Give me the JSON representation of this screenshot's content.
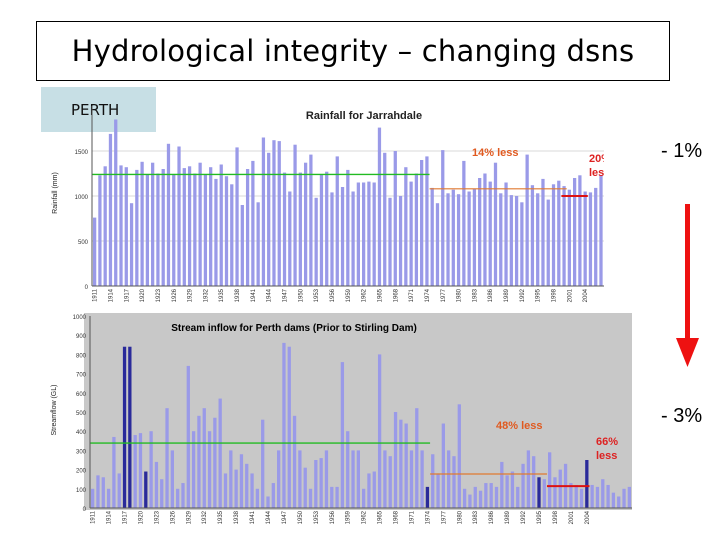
{
  "slide": {
    "title": "Hydrological integrity – changing dsns",
    "region_label": "PERTH",
    "rainfall_change": "- 1%",
    "streamflow_change": "- 3%",
    "colors": {
      "arrow": "#ee1111",
      "bars": "#9a9ae8",
      "dark_bars": "#2a2a9a",
      "green_line": "#22bb22",
      "orange_line": "#e07a30",
      "red_line": "#dd1111",
      "annot_orange": "#e05a20",
      "annot_red": "#dd2222",
      "panel_bg": "#c8c8c8"
    }
  },
  "chart_data": [
    {
      "type": "bar",
      "title": "Rainfall for Jarrahdale",
      "ylabel": "Rainfall (mm)",
      "ylim": [
        0,
        2000
      ],
      "yticks": [
        "0",
        "500",
        "1000",
        "1500"
      ],
      "x_start": 1911,
      "x_tick_labels": [
        "1911",
        "1914",
        "1917",
        "1920",
        "1923",
        "1926",
        "1929",
        "1932",
        "1935",
        "1938",
        "1941",
        "1944",
        "1947",
        "1950",
        "1953",
        "1956",
        "1959",
        "1962",
        "1965",
        "1968",
        "1971",
        "1974",
        "1977",
        "1980",
        "1983",
        "1986",
        "1989",
        "1992",
        "1995",
        "1998",
        "2001",
        "2004"
      ],
      "values": [
        760,
        1230,
        1330,
        1690,
        1850,
        1340,
        1320,
        920,
        1290,
        1380,
        1240,
        1370,
        1250,
        1300,
        1580,
        1240,
        1550,
        1310,
        1330,
        1250,
        1370,
        1240,
        1320,
        1190,
        1350,
        1220,
        1130,
        1540,
        900,
        1300,
        1390,
        930,
        1650,
        1480,
        1620,
        1610,
        1260,
        1050,
        1570,
        1260,
        1370,
        1460,
        980,
        1240,
        1270,
        1040,
        1440,
        1100,
        1290,
        1050,
        1150,
        1150,
        1160,
        1150,
        1760,
        1480,
        980,
        1500,
        1000,
        1320,
        1160,
        1250,
        1400,
        1440,
        1090,
        920,
        1510,
        1030,
        1070,
        1020,
        1390,
        1050,
        1080,
        1200,
        1250,
        1160,
        1370,
        1030,
        1150,
        1010,
        1000,
        930,
        1460,
        1120,
        1030,
        1190,
        960,
        1130,
        1170,
        1110,
        1070,
        1200,
        1230,
        1050,
        1040,
        1090,
        1230,
        1080,
        900,
        1000,
        1050,
        1120
      ],
      "averages": [
        {
          "label": "",
          "from": 1911,
          "to": 1974,
          "value": 1240
        },
        {
          "label": "14% less",
          "from": 1975,
          "to": 2000,
          "value": 1080
        },
        {
          "label": "20% less",
          "from": 2000,
          "to": 2004,
          "value": 1000
        }
      ]
    },
    {
      "type": "bar",
      "title": "Stream inflow for Perth dams  (Prior to Stirling Dam)",
      "ylabel": "Streamflow (GL)",
      "ylim": [
        0,
        1000
      ],
      "yticks": [
        "0",
        "100",
        "200",
        "300",
        "400",
        "500",
        "600",
        "700",
        "800",
        "900",
        "1000"
      ],
      "x_start": 1911,
      "x_tick_labels": [
        "1911",
        "1914",
        "1917",
        "1920",
        "1923",
        "1926",
        "1929",
        "1932",
        "1935",
        "1938",
        "1941",
        "1944",
        "1947",
        "1950",
        "1953",
        "1956",
        "1959",
        "1962",
        "1965",
        "1968",
        "1971",
        "1974",
        "1977",
        "1980",
        "1983",
        "1986",
        "1989",
        "1992",
        "1995",
        "1998",
        "2001",
        "2004"
      ],
      "values": [
        100,
        170,
        160,
        100,
        370,
        180,
        840,
        840,
        380,
        390,
        190,
        400,
        240,
        150,
        520,
        300,
        100,
        130,
        740,
        400,
        480,
        520,
        400,
        470,
        570,
        180,
        300,
        200,
        280,
        230,
        180,
        100,
        460,
        60,
        130,
        300,
        860,
        840,
        480,
        300,
        210,
        100,
        250,
        260,
        300,
        110,
        110,
        760,
        400,
        300,
        300,
        100,
        180,
        190,
        800,
        300,
        270,
        500,
        460,
        440,
        300,
        520,
        300,
        110,
        280,
        180,
        440,
        300,
        270,
        540,
        100,
        70,
        110,
        90,
        130,
        130,
        110,
        240,
        170,
        190,
        110,
        230,
        300,
        270,
        160,
        150,
        290,
        160,
        200,
        230,
        130,
        120,
        100,
        250,
        120,
        110,
        150,
        120,
        80,
        60,
        100,
        110
      ],
      "averages": [
        {
          "label": "",
          "from": 1911,
          "to": 1974,
          "value": 338
        },
        {
          "label": "48% less",
          "from": 1975,
          "to": 1996,
          "value": 177
        },
        {
          "label": "66% less",
          "from": 1997,
          "to": 2004,
          "value": 114
        }
      ]
    }
  ]
}
